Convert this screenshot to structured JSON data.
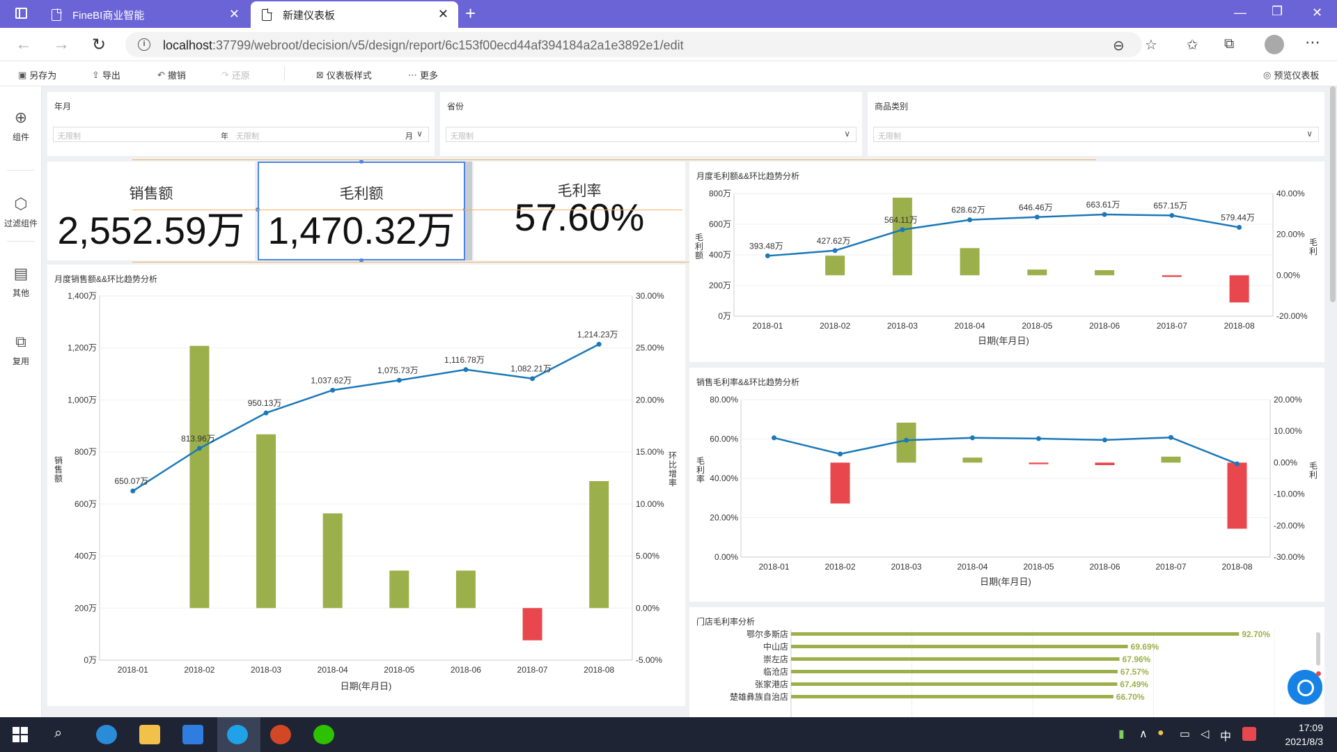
{
  "browser": {
    "tabs": [
      {
        "title": "FineBI商业智能"
      },
      {
        "title": "新建仪表板"
      }
    ],
    "url_host": "localhost",
    "url_rest": ":37799/webroot/decision/v5/design/report/6c153f00ecd44af394184a2a1e3892e1/edit"
  },
  "toolbar": {
    "save_as": "另存为",
    "export": "导出",
    "undo": "撤销",
    "redo": "还原",
    "style": "仪表板样式",
    "more": "更多",
    "preview": "预览仪表板"
  },
  "sidebar": {
    "items": [
      {
        "label": "组件"
      },
      {
        "label": "过滤组件"
      },
      {
        "label": "其他"
      },
      {
        "label": "复用"
      }
    ]
  },
  "filters": {
    "yearmonth": {
      "title": "年月",
      "placeholder_start": "无限制",
      "unit_year": "年",
      "placeholder_end": "无限制",
      "unit_month": "月"
    },
    "province": {
      "title": "省份",
      "placeholder": "无限制"
    },
    "category": {
      "title": "商品类别",
      "placeholder": "无限制"
    }
  },
  "kpis": [
    {
      "label": "销售额",
      "value": "2,552.59万"
    },
    {
      "label": "毛利额",
      "value": "1,470.32万"
    },
    {
      "label": "毛利率",
      "value": "57.60%"
    }
  ],
  "colors": {
    "bar_positive": "#9bb04a",
    "bar_negative": "#e8474d",
    "line": "#1a78b8",
    "accent": "#6b64d6"
  },
  "chart_data": [
    {
      "id": "sales",
      "type": "bar",
      "title": "月度销售额&&环比趋势分析",
      "xlabel": "日期(年月日)",
      "ylabel": "销售额",
      "y2label": "环比增率",
      "categories": [
        "2018-01",
        "2018-02",
        "2018-03",
        "2018-04",
        "2018-05",
        "2018-06",
        "2018-07",
        "2018-08"
      ],
      "y_ticks": [
        "0万",
        "200万",
        "400万",
        "600万",
        "800万",
        "1,000万",
        "1,200万",
        "1,400万"
      ],
      "y2_ticks": [
        "-5.00%",
        "0.00%",
        "5.00%",
        "10.00%",
        "15.00%",
        "20.00%",
        "25.00%",
        "30.00%"
      ],
      "y2lim": [
        -5,
        30
      ],
      "series": [
        {
          "kind": "bar",
          "values": [
            0,
            25.2,
            16.7,
            9.1,
            3.6,
            3.6,
            -3.1,
            12.2
          ]
        },
        {
          "kind": "line",
          "values": [
            650.07,
            813.96,
            950.13,
            1037.62,
            1075.73,
            1116.78,
            1082.21,
            1214.23
          ],
          "labels": [
            "650.07万",
            "813.96万",
            "950.13万",
            "1,037.62万",
            "1,075.73万",
            "1,116.78万",
            "1,082.21万",
            "1,214.23万"
          ]
        }
      ],
      "ylim": [
        0,
        1400
      ]
    },
    {
      "id": "profit",
      "type": "bar",
      "title": "月度毛利额&&环比趋势分析",
      "xlabel": "日期(年月日)",
      "ylabel": "毛利额",
      "y2label": "毛利",
      "categories": [
        "2018-01",
        "2018-02",
        "2018-03",
        "2018-04",
        "2018-05",
        "2018-06",
        "2018-07",
        "2018-08"
      ],
      "y_ticks": [
        "0万",
        "200万",
        "400万",
        "600万",
        "800万"
      ],
      "y2_ticks": [
        "-20.00%",
        "0.00%",
        "20.00%",
        "40.00%"
      ],
      "y2lim": [
        -20,
        40
      ],
      "series": [
        {
          "kind": "bar",
          "values": [
            0,
            9.6,
            38.0,
            13.3,
            2.8,
            2.5,
            -0.8,
            -13.3
          ]
        },
        {
          "kind": "line",
          "values": [
            393.48,
            427.62,
            564.11,
            628.62,
            646.46,
            663.61,
            657.15,
            579.44
          ],
          "labels": [
            "393.48万",
            "427.62万",
            "564.11万",
            "628.62万",
            "646.46万",
            "663.61万",
            "657.15万",
            "579.44万"
          ]
        }
      ],
      "ylim": [
        0,
        800
      ]
    },
    {
      "id": "margin",
      "type": "bar",
      "title": "销售毛利率&&环比趋势分析",
      "xlabel": "日期(年月日)",
      "ylabel": "毛利率",
      "y2label": "毛利",
      "categories": [
        "2018-01",
        "2018-02",
        "2018-03",
        "2018-04",
        "2018-05",
        "2018-06",
        "2018-07",
        "2018-08"
      ],
      "y_ticks": [
        "0.00%",
        "20.00%",
        "40.00%",
        "60.00%",
        "80.00%"
      ],
      "y2_ticks": [
        "-30.00%",
        "-20.00%",
        "-10.00%",
        "0.00%",
        "10.00%",
        "20.00%"
      ],
      "y2lim": [
        -30,
        20
      ],
      "series": [
        {
          "kind": "bar",
          "values": [
            0,
            -13.0,
            12.7,
            1.6,
            -0.5,
            -0.8,
            1.9,
            -21.0
          ]
        },
        {
          "kind": "line",
          "values": [
            60.6,
            52.4,
            59.4,
            60.6,
            60.2,
            59.5,
            60.8,
            47.4
          ]
        }
      ],
      "ylim": [
        0,
        80
      ]
    },
    {
      "id": "stores",
      "type": "bar",
      "orientation": "horizontal",
      "title": "门店毛利率分析",
      "categories": [
        "鄂尔多斯店",
        "中山店",
        "崇左店",
        "临沧店",
        "张家港店",
        "楚雄彝族自治店"
      ],
      "values": [
        92.7,
        69.69,
        67.96,
        67.57,
        67.49,
        66.7
      ],
      "labels": [
        "92.70%",
        "69.69%",
        "67.96%",
        "67.57%",
        "67.49%",
        "66.70%"
      ],
      "xlim": [
        0,
        100
      ]
    }
  ],
  "taskbar": {
    "time": "17:09",
    "date": "2021/8/3",
    "ime": "中"
  }
}
